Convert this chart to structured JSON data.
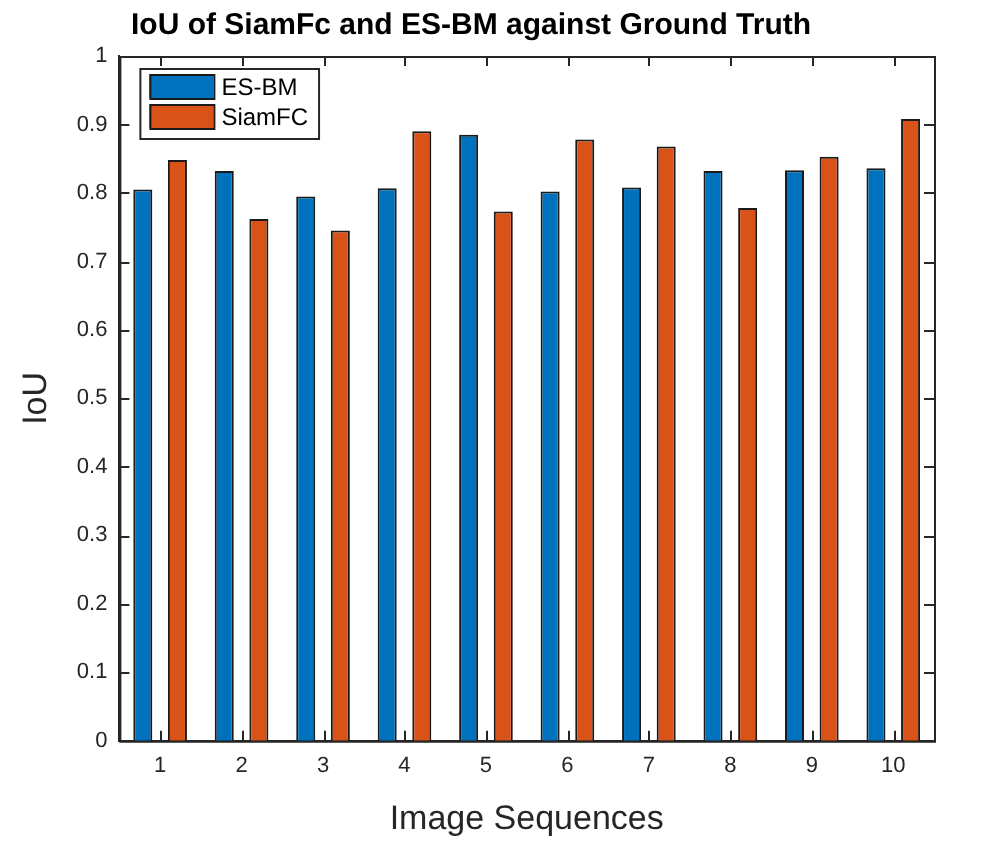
{
  "chart_data": {
    "type": "bar",
    "title": "IoU of SiamFc and ES-BM against Ground Truth",
    "xlabel": "Image Sequences",
    "ylabel": "IoU",
    "categories": [
      "1",
      "2",
      "3",
      "4",
      "5",
      "6",
      "7",
      "8",
      "9",
      "10"
    ],
    "series": [
      {
        "name": "ES-BM",
        "color": "#0072bd",
        "values": [
          0.805,
          0.832,
          0.795,
          0.807,
          0.885,
          0.802,
          0.808,
          0.832,
          0.833,
          0.836
        ]
      },
      {
        "name": "SiamFC",
        "color": "#d95319",
        "values": [
          0.848,
          0.762,
          0.745,
          0.89,
          0.773,
          0.878,
          0.868,
          0.778,
          0.853,
          0.908
        ]
      }
    ],
    "ylim": [
      0,
      1
    ],
    "yticks": [
      0,
      0.1,
      0.2,
      0.3,
      0.4,
      0.5,
      0.6,
      0.7,
      0.8,
      0.9,
      1
    ],
    "grid": false,
    "legend": "top left"
  }
}
